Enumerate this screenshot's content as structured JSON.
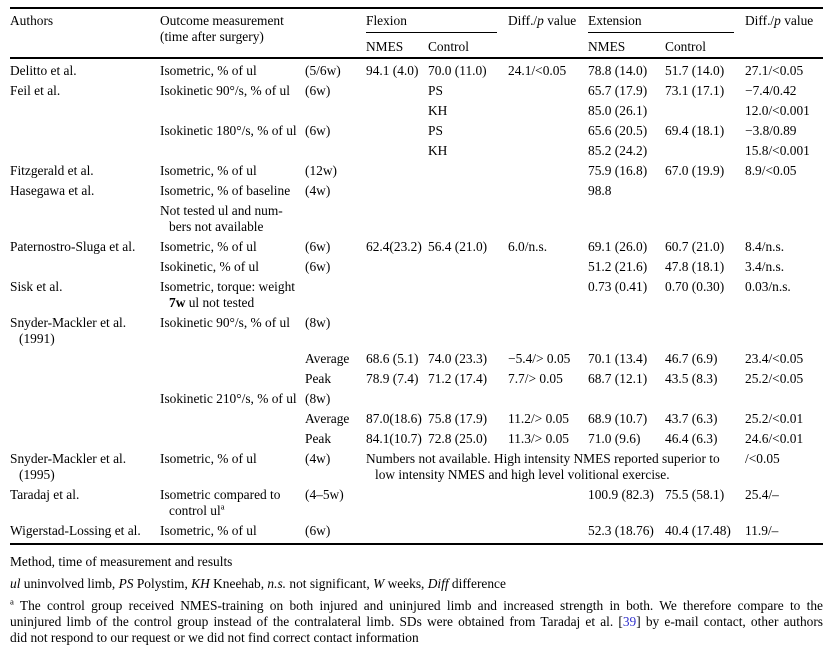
{
  "colors": {
    "link": "#3333cc"
  },
  "table": {
    "header": {
      "authors": "Authors",
      "outcome_line1": "Outcome measurement",
      "outcome_line2": "(time after surgery)",
      "flexion": "Flexion",
      "extension": "Extension",
      "nmes": "NMES",
      "control": "Control",
      "diff_parts": [
        "Diff./",
        {
          "i": "p"
        },
        " value"
      ]
    },
    "rows": [
      {
        "name": "row-delitto",
        "cells": [
          "Delitto et al.",
          "Isometric, % of ul",
          "(5/6w)",
          "94.1 (4.0)",
          "70.0 (11.0)",
          "24.1/<0.05",
          "78.8 (14.0)",
          "51.7 (14.0)",
          "27.1/<0.05"
        ]
      },
      {
        "name": "row-feil-90-ps",
        "cells": [
          "Feil et al.",
          "Isokinetic 90°/s, % of ul",
          "(6w)",
          "",
          "PS",
          "",
          "65.7 (17.9)",
          "73.1 (17.1)",
          "−7.4/0.42"
        ]
      },
      {
        "name": "row-feil-90-kh",
        "cells": [
          "",
          "",
          "",
          "",
          "KH",
          "",
          "85.0 (26.1)",
          "",
          "12.0/<0.001"
        ]
      },
      {
        "name": "row-feil-180-ps",
        "cells": [
          "",
          "Isokinetic 180°/s, % of ul",
          "(6w)",
          "",
          "PS",
          "",
          "65.6 (20.5)",
          "69.4 (18.1)",
          "−3.8/0.89"
        ]
      },
      {
        "name": "row-feil-180-kh",
        "cells": [
          "",
          "",
          "",
          "",
          "KH",
          "",
          "85.2 (24.2)",
          "",
          "15.8/<0.001"
        ]
      },
      {
        "name": "row-fitzgerald",
        "cells": [
          "Fitzgerald et al.",
          "Isometric, % of ul",
          "(12w)",
          "",
          "",
          "",
          "75.9 (16.8)",
          "67.0 (19.9)",
          "8.9/<0.05"
        ]
      },
      {
        "name": "row-hasegawa",
        "cells": [
          "Hasegawa et al.",
          "Isometric, % of baseline",
          "(4w)",
          "",
          "",
          "",
          "98.8",
          "",
          ""
        ]
      },
      {
        "name": "row-hasegawa-note",
        "cells": [
          "",
          {
            "lines": [
              {
                "text": "Not tested ul and num-"
              },
              {
                "text": "bers not available",
                "indent": true
              }
            ]
          },
          "",
          "",
          "",
          "",
          "",
          "",
          ""
        ]
      },
      {
        "name": "row-paternostro-sluga-isometric",
        "cells": [
          "Paternostro-Sluga et al.",
          "Isometric, % of ul",
          "(6w)",
          "62.4(23.2)",
          "56.4 (21.0)",
          "6.0/n.s.",
          "69.1 (26.0)",
          "60.7 (21.0)",
          "8.4/n.s."
        ]
      },
      {
        "name": "row-paternostro-sluga-isokinetic",
        "cells": [
          "",
          "Isokinetic, % of ul",
          "(6w)",
          "",
          "",
          "",
          "51.2 (21.6)",
          "47.8 (18.1)",
          "3.4/n.s."
        ]
      },
      {
        "name": "row-sisk",
        "cells": [
          "Sisk et al.",
          {
            "lines": [
              {
                "text": "Isometric, torque: weight"
              },
              {
                "bold": "7w",
                "text": " ul not tested",
                "indent": true
              }
            ]
          },
          "",
          "",
          "",
          "",
          "0.73 (0.41)",
          "0.70 (0.30)",
          "0.03/n.s."
        ]
      },
      {
        "name": "row-snyder-mackler-1991-90",
        "cells": [
          {
            "lines": [
              {
                "text": "Snyder-Mackler et al."
              },
              {
                "text": "(1991)",
                "indent": true
              }
            ]
          },
          "Isokinetic 90°/s, % of ul",
          "(8w)",
          "",
          "",
          "",
          "",
          "",
          ""
        ]
      },
      {
        "name": "row-sm1991-90-average",
        "cells": [
          "",
          "",
          "Average",
          "68.6 (5.1)",
          "74.0 (23.3)",
          "−5.4/> 0.05",
          "70.1 (13.4)",
          "46.7 (6.9)",
          "23.4/<0.05"
        ]
      },
      {
        "name": "row-sm1991-90-peak",
        "cells": [
          "",
          "",
          "Peak",
          "78.9 (7.4)",
          "71.2 (17.4)",
          "7.7/> 0.05",
          "68.7 (12.1)",
          "43.5 (8.3)",
          "25.2/<0.05"
        ]
      },
      {
        "name": "row-sm1991-210",
        "cells": [
          "",
          "Isokinetic 210°/s, % of ul",
          "(8w)",
          "",
          "",
          "",
          "",
          "",
          ""
        ]
      },
      {
        "name": "row-sm1991-210-average",
        "cells": [
          "",
          "",
          "Average",
          "87.0(18.6)",
          "75.8 (17.9)",
          "11.2/> 0.05",
          "68.9 (10.7)",
          "43.7 (6.3)",
          "25.2/<0.01"
        ]
      },
      {
        "name": "row-sm1991-210-peak",
        "cells": [
          "",
          "",
          "Peak",
          "84.1(10.7)",
          "72.8 (25.0)",
          "11.3/> 0.05",
          "71.0 (9.6)",
          "46.4 (6.3)",
          "24.6/<0.01"
        ]
      },
      {
        "name": "row-snyder-mackler-1995",
        "cells": [
          {
            "lines": [
              {
                "text": "Snyder-Mackler et al."
              },
              {
                "text": "(1995)",
                "indent": true
              }
            ]
          },
          "Isometric, % of ul",
          "(4w)",
          {
            "colspan": 5,
            "lines": [
              {
                "text": "Numbers not available. High intensity NMES reported superior to"
              },
              {
                "text": "low intensity NMES and high level volitional exercise.",
                "indent": true
              }
            ]
          },
          "/<0.05"
        ]
      },
      {
        "name": "row-taradaj",
        "cells": [
          "Taradaj et al.",
          {
            "lines": [
              {
                "text": "Isometric compared to"
              },
              {
                "text": "control ul",
                "sup": "a",
                "indent": true
              }
            ]
          },
          "(4–5w)",
          "",
          "",
          "",
          "100.9 (82.3)",
          "75.5 (58.1)",
          "25.4/–"
        ]
      },
      {
        "name": "row-wigerstad-lossing",
        "cells": [
          "Wigerstad-Lossing et al.",
          "Isometric, % of ul",
          "(6w)",
          "",
          "",
          "",
          "52.3 (18.76)",
          "40.4 (17.48)",
          "11.9/–"
        ]
      }
    ]
  },
  "footer": {
    "caption": "Method, time of measurement and results",
    "abbreviations_parts": [
      {
        "i": "ul"
      },
      " uninvolved limb, ",
      {
        "i": "PS"
      },
      " Polystim, ",
      {
        "i": "KH"
      },
      " Kneehab, ",
      {
        "i": "n.s."
      },
      " not significant, ",
      {
        "i": "W"
      },
      " weeks, ",
      {
        "i": "Diff"
      },
      " difference"
    ],
    "footnote_a": {
      "line1": [
        {
          "sup": "a"
        },
        " The control group received NMES-training on both injured and uninjured limb and increased strength in both. We therefore compare to the"
      ],
      "line2": [
        "uninjured limb of the control group instead of the contralateral limb. SDs were obtained from Taradaj et al. [",
        {
          "link": "39"
        },
        "] by e-mail contact, other authors"
      ],
      "line3": [
        "did not respond to our request or we did not find correct contact information"
      ]
    }
  }
}
